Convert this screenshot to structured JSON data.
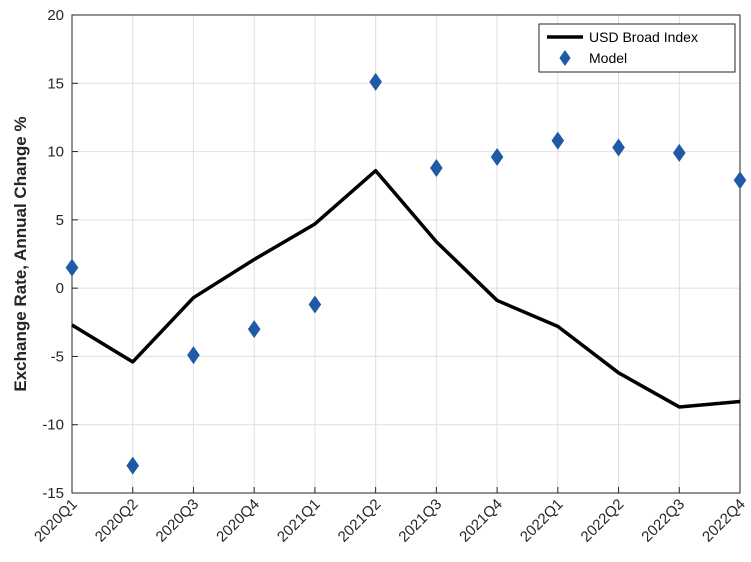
{
  "chart_data": {
    "type": "line",
    "ylabel": "Exchange Rate, Annual Change %",
    "categories": [
      "2020Q1",
      "2020Q2",
      "2020Q3",
      "2020Q4",
      "2021Q1",
      "2021Q2",
      "2021Q3",
      "2021Q4",
      "2022Q1",
      "2022Q2",
      "2022Q3",
      "2022Q4"
    ],
    "series": [
      {
        "name": "USD Broad Index",
        "color": "#000000",
        "style": "line",
        "values": [
          -2.7,
          -5.4,
          -0.7,
          2.1,
          4.7,
          8.6,
          3.4,
          -0.9,
          -2.8,
          -6.2,
          -8.7,
          -8.3
        ]
      },
      {
        "name": "Model",
        "color": "#1f5aa6",
        "style": "diamond",
        "values": [
          1.5,
          -13.0,
          -4.9,
          -3.0,
          -1.2,
          15.1,
          8.8,
          9.6,
          10.8,
          10.3,
          9.9,
          7.9
        ]
      }
    ],
    "ylim": [
      -15,
      20
    ],
    "yticks": [
      -15,
      -10,
      -5,
      0,
      5,
      10,
      15,
      20
    ],
    "grid": true,
    "legend": "top-right"
  }
}
